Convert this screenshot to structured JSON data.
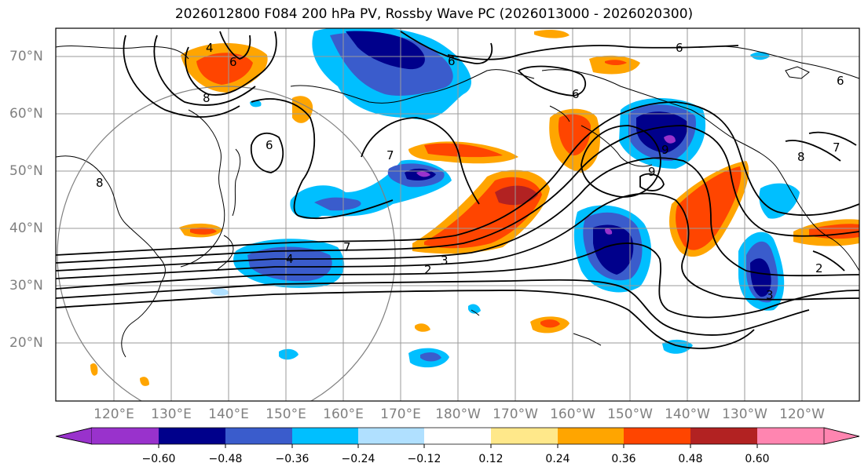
{
  "title": "2026012800 F084 200 hPa PV, Rossby Wave PC (2026013000 - 2026020300)",
  "lat_labels": [
    "70°N",
    "60°N",
    "50°N",
    "40°N",
    "30°N",
    "20°N"
  ],
  "lon_labels": [
    "120°E",
    "130°E",
    "140°E",
    "150°E",
    "160°E",
    "170°E",
    "180°W",
    "170°W",
    "160°W",
    "150°W",
    "140°W",
    "130°W",
    "120°W"
  ],
  "colorbar": {
    "ticks": [
      "−0.60",
      "−0.48",
      "−0.36",
      "−0.24",
      "−0.12",
      "0.12",
      "0.24",
      "0.36",
      "0.48",
      "0.60"
    ],
    "colors": [
      "#9932cc",
      "#00008b",
      "#3a5ccc",
      "#00bfff",
      "#b0e0ff",
      "#ffffff",
      "#ffe88a",
      "#ffa500",
      "#ff4500",
      "#b22222",
      "#ff85b0"
    ]
  },
  "contour_labels": [
    "6",
    "6",
    "6",
    "6",
    "6",
    "6",
    "8",
    "8",
    "8",
    "9",
    "9",
    "7",
    "7",
    "7",
    "4",
    "4",
    "3",
    "3",
    "2",
    "2"
  ],
  "palette": {
    "purple": "#9932cc",
    "navy": "#00008b",
    "blue": "#3a5ccc",
    "cyan": "#00bfff",
    "lightblue": "#b0e0ff",
    "yellow": "#ffe88a",
    "orange": "#ffa500",
    "redorange": "#ff4500",
    "darkred": "#b22222",
    "pink": "#ff85b0"
  }
}
